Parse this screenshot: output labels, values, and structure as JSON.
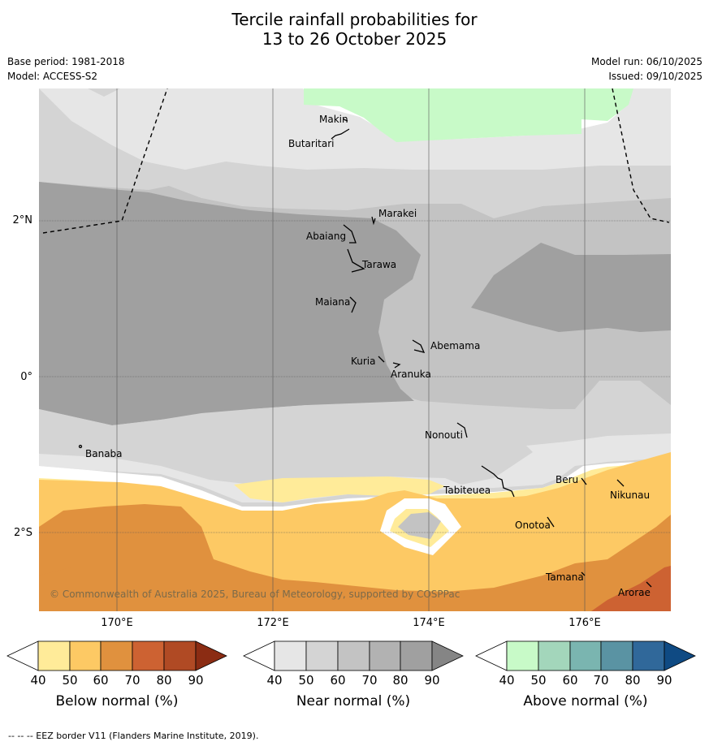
{
  "title": {
    "line1": "Tercile rainfall probabilities for",
    "line2": "13 to 26 October 2025"
  },
  "meta": {
    "base_period": "Base period: 1981-2018",
    "model": "Model: ACCESS-S2",
    "model_run": "Model run: 06/10/2025",
    "issued": "Issued: 09/10/2025"
  },
  "axes": {
    "lat_labels": [
      "2°N",
      "0°",
      "2°S"
    ],
    "lon_labels": [
      "170°E",
      "172°E",
      "174°E",
      "176°E"
    ],
    "lat_values": [
      2,
      0,
      -2
    ],
    "lon_values": [
      170,
      172,
      174,
      176
    ],
    "lon_range": [
      169,
      177.1
    ],
    "lat_range": [
      -3,
      3.7
    ]
  },
  "places": [
    {
      "name": "Makin",
      "lon": 172.95,
      "lat": 3.3
    },
    {
      "name": "Butaritari",
      "lon": 172.8,
      "lat": 3.05
    },
    {
      "name": "Marakei",
      "lon": 173.3,
      "lat": 2.0
    },
    {
      "name": "Abaiang",
      "lon": 172.95,
      "lat": 1.8
    },
    {
      "name": "Tarawa",
      "lon": 173.0,
      "lat": 1.42
    },
    {
      "name": "Maiana",
      "lon": 173.0,
      "lat": 0.95
    },
    {
      "name": "Abemama",
      "lon": 173.85,
      "lat": 0.4
    },
    {
      "name": "Kuria",
      "lon": 173.4,
      "lat": 0.22
    },
    {
      "name": "Aranuka",
      "lon": 173.6,
      "lat": 0.16
    },
    {
      "name": "Nonouti",
      "lon": 174.45,
      "lat": -0.65
    },
    {
      "name": "Banaba",
      "lon": 169.55,
      "lat": -0.87
    },
    {
      "name": "Tabiteuea",
      "lon": 174.8,
      "lat": -1.3
    },
    {
      "name": "Beru",
      "lon": 176.0,
      "lat": -1.35
    },
    {
      "name": "Nikunau",
      "lon": 176.45,
      "lat": -1.38
    },
    {
      "name": "Onotoa",
      "lon": 175.55,
      "lat": -1.85
    },
    {
      "name": "Tamana",
      "lon": 175.98,
      "lat": -2.5
    },
    {
      "name": "Arorae",
      "lon": 176.82,
      "lat": -2.65
    }
  ],
  "copyright": "© Commonwealth of Australia 2025, Bureau of Meteorology, supported by COSPPac",
  "colorbars": [
    {
      "title": "Below normal (%)",
      "ticks": [
        "40",
        "50",
        "60",
        "70",
        "80",
        "90"
      ],
      "colors": [
        "#ffffff",
        "#ffeb99",
        "#fdc964",
        "#e0913e",
        "#cd6232",
        "#b04a24",
        "#8b2c13"
      ]
    },
    {
      "title": "Near normal (%)",
      "ticks": [
        "40",
        "50",
        "60",
        "70",
        "80",
        "90"
      ],
      "colors": [
        "#ffffff",
        "#e6e6e6",
        "#d4d4d4",
        "#c3c3c3",
        "#b2b2b2",
        "#a0a0a0",
        "#858585"
      ]
    },
    {
      "title": "Above normal (%)",
      "ticks": [
        "40",
        "50",
        "60",
        "70",
        "80",
        "90"
      ],
      "colors": [
        "#ffffff",
        "#c8fac8",
        "#a3d6bb",
        "#7ab5b0",
        "#5a93a3",
        "#30689a",
        "#0f4a83"
      ]
    }
  ],
  "footer": "--  --  -- EEZ border V11 (Flanders Marine Institute, 2019)."
}
